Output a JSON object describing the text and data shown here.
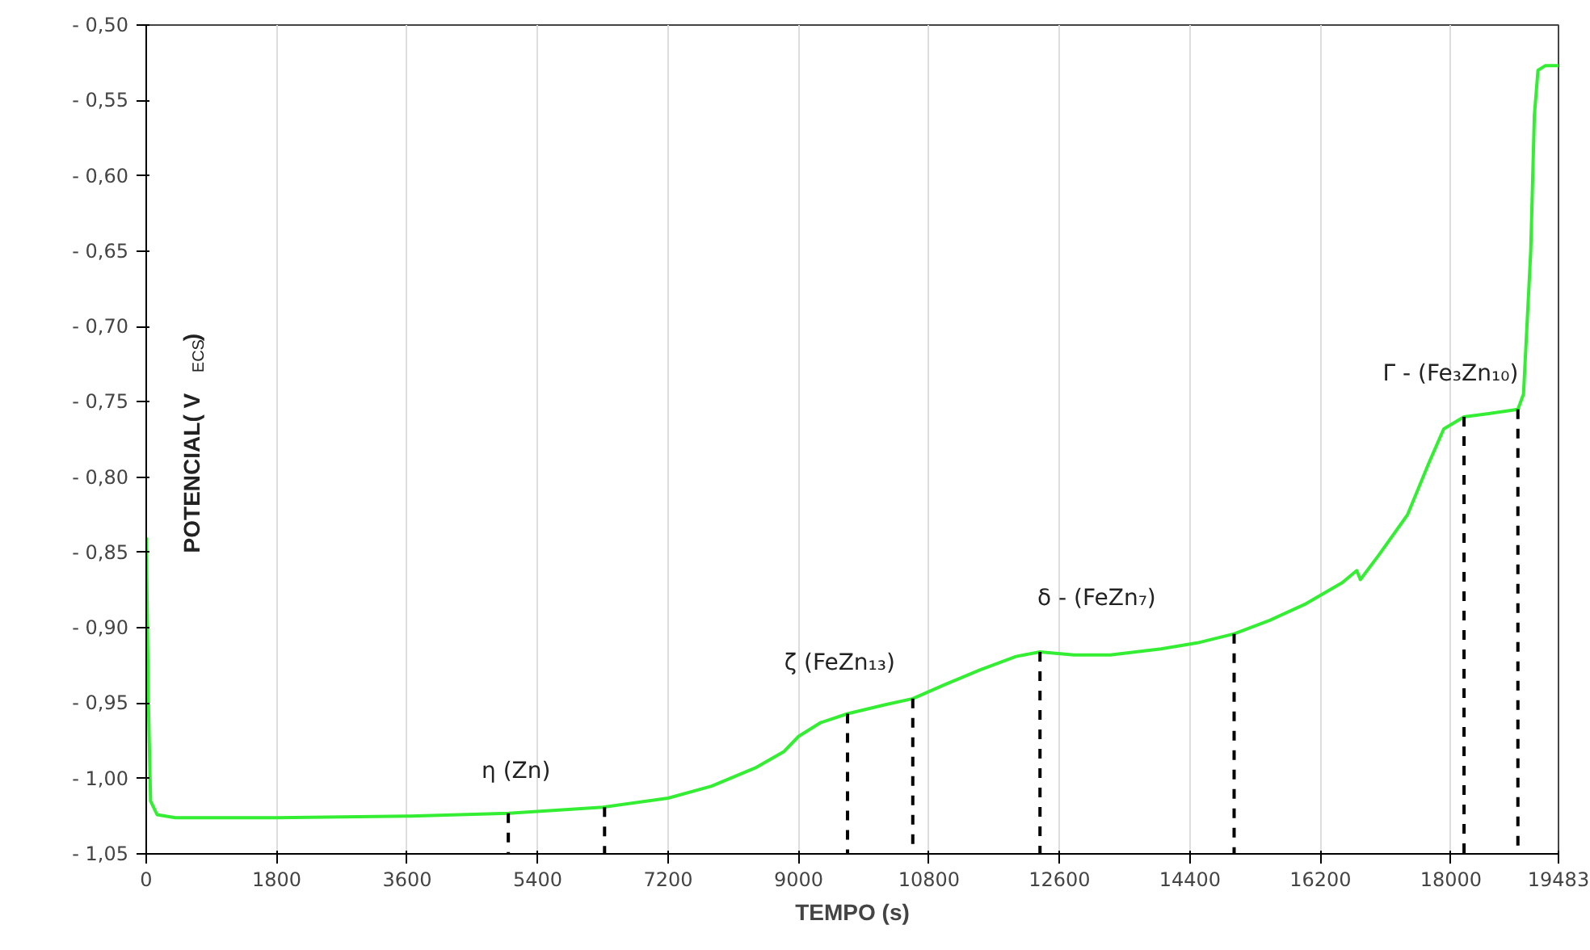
{
  "chart_data": {
    "type": "line",
    "xlabel": "TEMPO (s)",
    "ylabel": "POTENCIAL( V$_{ECS}$)",
    "x": [
      0,
      30,
      60,
      150,
      400,
      1800,
      3600,
      5000,
      6300,
      7200,
      7800,
      8400,
      8800,
      9000,
      9300,
      9675,
      10200,
      10575,
      11000,
      11500,
      12000,
      12330,
      12800,
      13300,
      14000,
      14500,
      15008,
      15500,
      16000,
      16500,
      16700,
      16750,
      17000,
      17400,
      17700,
      17900,
      18180,
      18500,
      18923,
      19000,
      19100,
      19150,
      19200,
      19300,
      19483
    ],
    "series": [
      {
        "color": "#33ee33",
        "values": [
          -0.84,
          -0.95,
          -1.015,
          -1.024,
          -1.026,
          -1.026,
          -1.025,
          -1.023,
          -1.019,
          -1.013,
          -1.005,
          -0.993,
          -0.982,
          -0.972,
          -0.963,
          -0.957,
          -0.951,
          -0.947,
          -0.938,
          -0.928,
          -0.919,
          -0.916,
          -0.918,
          -0.918,
          -0.914,
          -0.91,
          -0.904,
          -0.895,
          -0.884,
          -0.87,
          -0.862,
          -0.868,
          -0.852,
          -0.825,
          -0.79,
          -0.768,
          -0.76,
          -0.758,
          -0.755,
          -0.745,
          -0.65,
          -0.56,
          -0.53,
          -0.527,
          -0.527
        ]
      },
      {
        "color": "#000000",
        "line_style": "dashed",
        "x": [
          4995,
          4995
        ],
        "values": [
          -1.05,
          -1.023
        ]
      },
      {
        "color": "#000000",
        "line_style": "dashed",
        "x": [
          6323,
          6323
        ],
        "values": [
          -1.05,
          -1.019
        ]
      },
      {
        "color": "#000000",
        "line_style": "dashed",
        "x": [
          9675,
          9675
        ],
        "values": [
          -1.05,
          -0.957
        ]
      },
      {
        "color": "#000000",
        "line_style": "dashed",
        "x": [
          10575,
          10575
        ],
        "values": [
          -1.05,
          -0.947
        ]
      },
      {
        "color": "#000000",
        "line_style": "dashed",
        "x": [
          12330,
          12330
        ],
        "values": [
          -1.05,
          -0.916
        ]
      },
      {
        "color": "#000000",
        "line_style": "dashed",
        "x": [
          15008,
          15008
        ],
        "values": [
          -1.05,
          -0.904
        ]
      },
      {
        "color": "#000000",
        "line_style": "dashed",
        "x": [
          18180,
          18180
        ],
        "values": [
          -1.05,
          -0.76
        ]
      },
      {
        "color": "#000000",
        "line_style": "dashed",
        "x": [
          18923,
          18923
        ],
        "values": [
          -1.05,
          -0.755
        ]
      }
    ],
    "xlim": [
      0,
      19483
    ],
    "xticks": [
      0,
      1800,
      3600,
      5400,
      7200,
      9000,
      10800,
      12600,
      14400,
      16200,
      18000,
      19483
    ],
    "ylim": [
      -1.05,
      -0.5
    ],
    "yticks": [
      {
        "value": -1.05,
        "label": "- 1,05"
      },
      {
        "value": -1.0,
        "label": "- 1,00"
      },
      {
        "value": -0.95,
        "label": "- 0,95"
      },
      {
        "value": -0.9,
        "label": "- 0,90"
      },
      {
        "value": -0.85,
        "label": "- 0,85"
      },
      {
        "value": -0.8,
        "label": "- 0,80"
      },
      {
        "value": -0.75,
        "label": "- 0,75"
      },
      {
        "value": -0.7,
        "label": "- 0,70"
      },
      {
        "value": -0.65,
        "label": "- 0,65"
      },
      {
        "value": -0.6,
        "label": "- 0,60"
      },
      {
        "value": -0.55,
        "label": "- 0,55"
      },
      {
        "value": -0.5,
        "label": "- 0,50"
      }
    ],
    "grid": "x",
    "annotations": [
      "η (Zn)",
      "ζ (FeZn₁₃)",
      "δ - (FeZn₇)",
      "Γ - (Fe₃Zn₁₀)"
    ]
  }
}
